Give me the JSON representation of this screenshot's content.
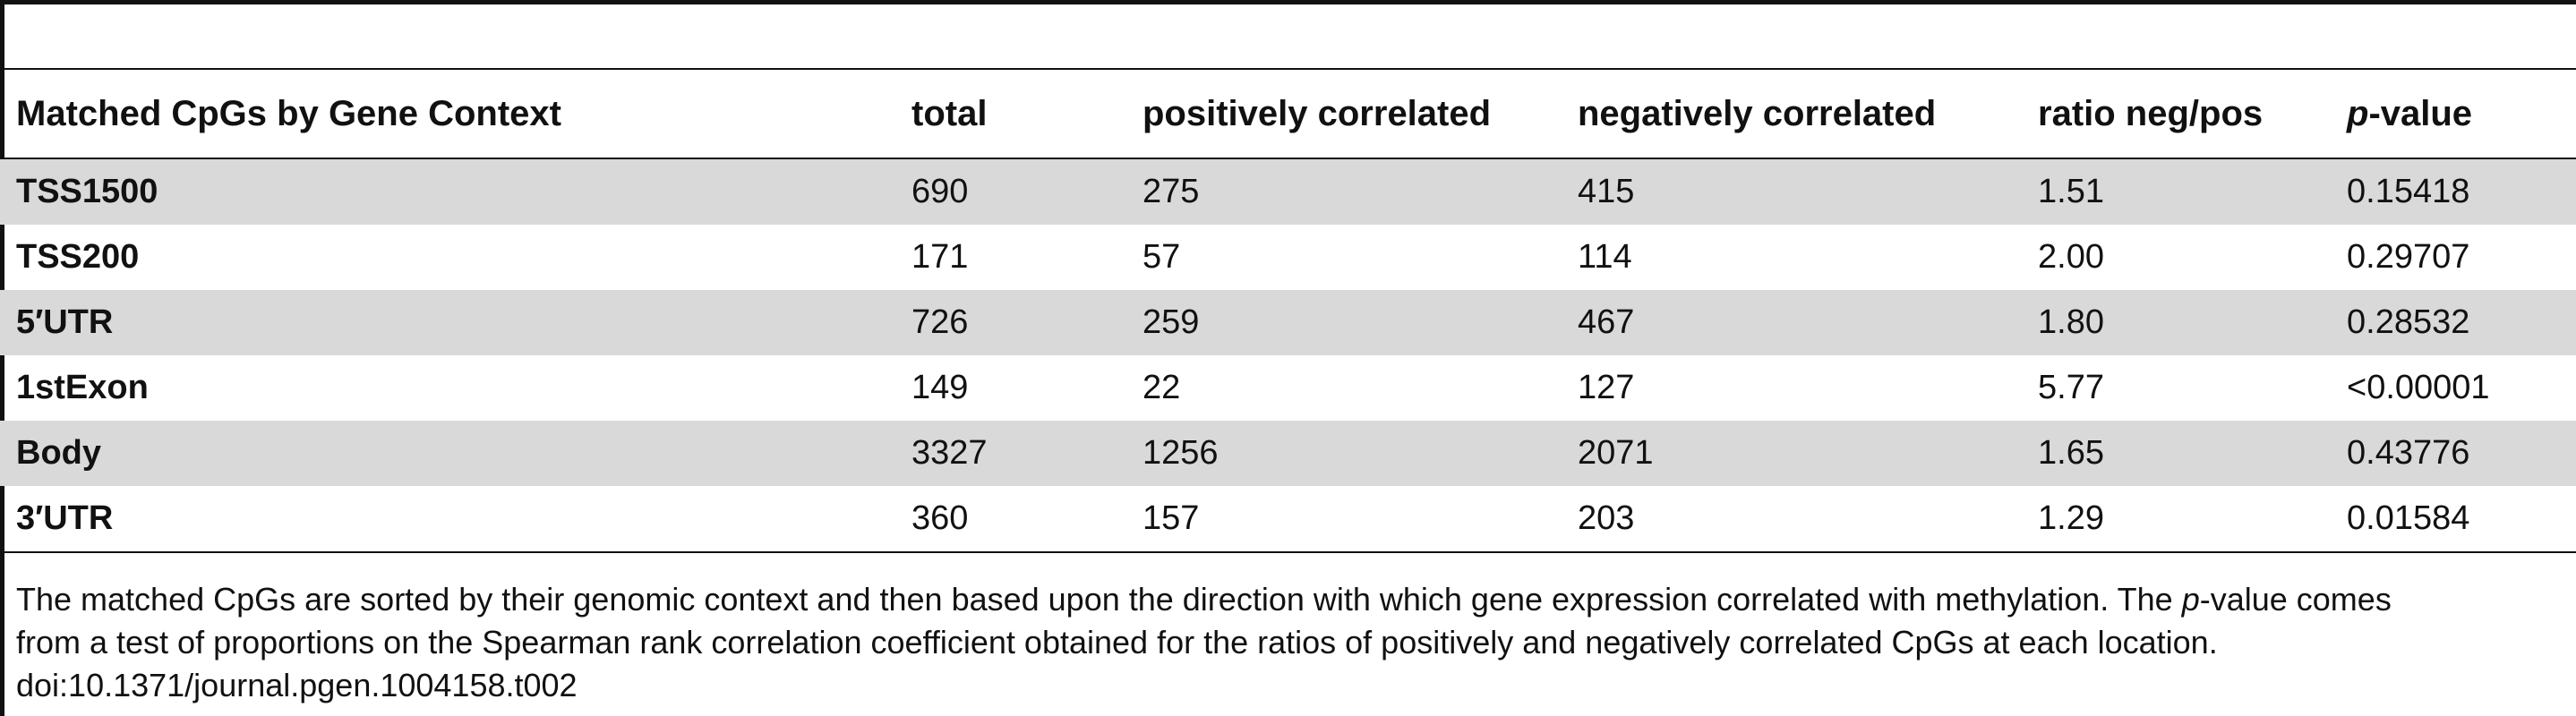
{
  "table": {
    "columns": [
      "Matched CpGs by Gene Context",
      "total",
      "positively correlated",
      "negatively correlated",
      "ratio neg/pos",
      "p-value"
    ],
    "pvalue_header": {
      "italic": "p",
      "rest": "-value"
    },
    "rows": [
      {
        "context": "TSS1500",
        "total": "690",
        "pos": "275",
        "neg": "415",
        "ratio": "1.51",
        "pvalue": "0.15418"
      },
      {
        "context": "TSS200",
        "total": "171",
        "pos": "57",
        "neg": "114",
        "ratio": "2.00",
        "pvalue": "0.29707"
      },
      {
        "context": "5′UTR",
        "total": "726",
        "pos": "259",
        "neg": "467",
        "ratio": "1.80",
        "pvalue": "0.28532"
      },
      {
        "context": "1stExon",
        "total": "149",
        "pos": "22",
        "neg": "127",
        "ratio": "5.77",
        "pvalue": "<0.00001"
      },
      {
        "context": "Body",
        "total": "3327",
        "pos": "1256",
        "neg": "2071",
        "ratio": "1.65",
        "pvalue": "0.43776"
      },
      {
        "context": "3′UTR",
        "total": "360",
        "pos": "157",
        "neg": "203",
        "ratio": "1.29",
        "pvalue": "0.01584"
      }
    ]
  },
  "footnote": {
    "line1_a": "The matched CpGs are sorted by their genomic context and then based upon the direction with which gene expression correlated with methylation. The ",
    "line1_italic": "p",
    "line1_b": "-value comes",
    "line2": "from a test of proportions on the Spearman rank correlation coefficient obtained for the ratios of positively and negatively correlated CpGs at each location.",
    "doi": "doi:10.1371/journal.pgen.1004158.t002"
  }
}
